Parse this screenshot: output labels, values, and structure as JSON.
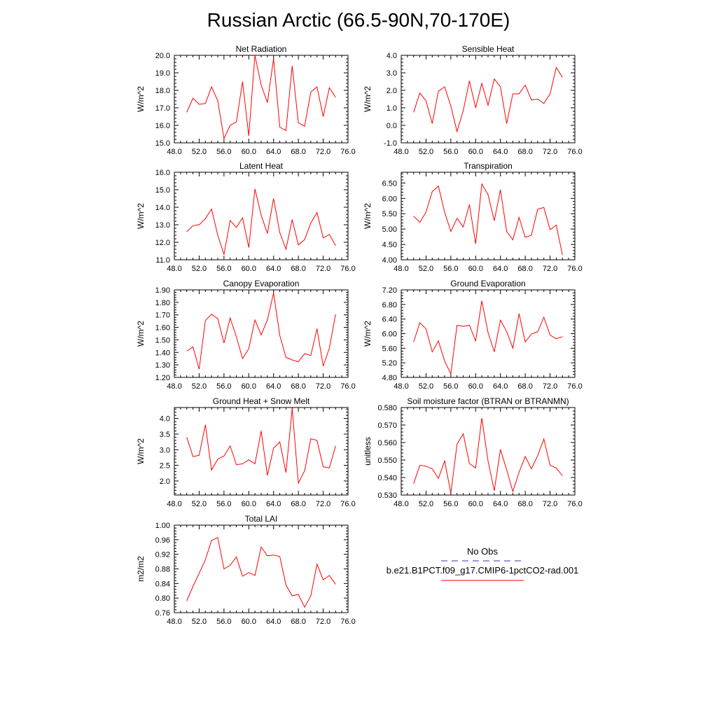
{
  "title": "Russian Arctic (66.5-90N,70-170E)",
  "legend": {
    "items": [
      {
        "label": "No Obs",
        "color": "#3333aa",
        "dash": true
      },
      {
        "label": "b.e21.B1PCT.f09_g17.CMIP6-1pctCO2-rad.001",
        "color": "#ff0000",
        "dash": false
      }
    ]
  },
  "chart_data": [
    {
      "type": "line",
      "title": "Net Radiation",
      "ylabel": "W/m^2",
      "xlim": [
        48,
        76
      ],
      "ylim": [
        15,
        20
      ],
      "xticks": [
        "48.0",
        "52.0",
        "56.0",
        "60.0",
        "64.0",
        "68.0",
        "72.0",
        "76.0"
      ],
      "yticks": [
        "15.0",
        "16.0",
        "17.0",
        "18.0",
        "19.0",
        "20.0"
      ],
      "yticks_values": [
        15,
        16,
        17,
        18,
        19,
        20
      ],
      "series": [
        {
          "color": "#ff0000",
          "x": [
            50,
            51,
            52,
            53,
            54,
            55,
            56,
            57,
            58,
            59,
            60,
            61,
            62,
            63,
            64,
            65,
            66,
            67,
            68,
            69,
            70,
            71,
            72,
            73,
            74
          ],
          "y": [
            16.75,
            17.55,
            17.2,
            17.25,
            18.2,
            17.4,
            15.25,
            16.0,
            16.2,
            18.5,
            15.4,
            20.0,
            18.3,
            17.3,
            19.8,
            15.9,
            15.7,
            19.4,
            16.15,
            15.95,
            17.9,
            18.2,
            16.5,
            18.15,
            17.6
          ]
        }
      ]
    },
    {
      "type": "line",
      "title": "Sensible Heat",
      "ylabel": "W/m^2",
      "xlim": [
        48,
        76
      ],
      "ylim": [
        -1,
        4
      ],
      "xticks": [
        "48.0",
        "52.0",
        "56.0",
        "60.0",
        "64.0",
        "68.0",
        "72.0",
        "76.0"
      ],
      "yticks": [
        "-1.0",
        "0.0",
        "1.0",
        "2.0",
        "3.0",
        "4.0"
      ],
      "yticks_values": [
        -1,
        0,
        1,
        2,
        3,
        4
      ],
      "series": [
        {
          "color": "#ff0000",
          "x": [
            50,
            51,
            52,
            53,
            54,
            55,
            56,
            57,
            58,
            59,
            60,
            61,
            62,
            63,
            64,
            65,
            66,
            67,
            68,
            69,
            70,
            71,
            72,
            73,
            74
          ],
          "y": [
            0.75,
            1.85,
            1.4,
            0.1,
            1.95,
            2.2,
            1.1,
            -0.35,
            0.85,
            2.55,
            1.0,
            2.4,
            1.15,
            2.65,
            2.2,
            0.1,
            1.8,
            1.8,
            2.3,
            1.45,
            1.5,
            1.25,
            1.8,
            3.3,
            2.75
          ]
        }
      ]
    },
    {
      "type": "line",
      "title": "Latent Heat",
      "ylabel": "W/m^2",
      "xlim": [
        48,
        76
      ],
      "ylim": [
        11,
        16
      ],
      "xticks": [
        "48.0",
        "52.0",
        "56.0",
        "60.0",
        "64.0",
        "68.0",
        "72.0",
        "76.0"
      ],
      "yticks": [
        "11.0",
        "12.0",
        "13.0",
        "14.0",
        "15.0",
        "16.0"
      ],
      "yticks_values": [
        11,
        12,
        13,
        14,
        15,
        16
      ],
      "series": [
        {
          "color": "#ff0000",
          "x": [
            50,
            51,
            52,
            53,
            54,
            55,
            56,
            57,
            58,
            59,
            60,
            61,
            62,
            63,
            64,
            65,
            66,
            67,
            68,
            69,
            70,
            71,
            72,
            73,
            74
          ],
          "y": [
            12.6,
            12.95,
            13.0,
            13.35,
            13.9,
            12.4,
            11.3,
            13.25,
            12.85,
            13.4,
            11.7,
            15.05,
            13.55,
            12.5,
            14.5,
            12.55,
            11.6,
            13.3,
            11.85,
            12.15,
            13.1,
            13.7,
            12.25,
            12.45,
            11.8
          ]
        }
      ]
    },
    {
      "type": "line",
      "title": "Transpiration",
      "ylabel": "W/m^2",
      "xlim": [
        48,
        76
      ],
      "ylim": [
        4,
        6.85
      ],
      "xticks": [
        "48.0",
        "52.0",
        "56.0",
        "60.0",
        "64.0",
        "68.0",
        "72.0",
        "76.0"
      ],
      "yticks": [
        "4.00",
        "4.50",
        "5.00",
        "5.50",
        "6.00",
        "6.50"
      ],
      "yticks_values": [
        4,
        4.5,
        5,
        5.5,
        6,
        6.5
      ],
      "series": [
        {
          "color": "#ff0000",
          "x": [
            50,
            51,
            52,
            53,
            54,
            55,
            56,
            57,
            58,
            59,
            60,
            61,
            62,
            63,
            64,
            65,
            66,
            67,
            68,
            69,
            70,
            71,
            72,
            73,
            74
          ],
          "y": [
            5.42,
            5.22,
            5.55,
            6.22,
            6.4,
            5.55,
            4.92,
            5.35,
            5.07,
            5.8,
            4.52,
            6.47,
            6.12,
            5.27,
            6.28,
            4.92,
            4.65,
            5.38,
            4.73,
            4.8,
            5.65,
            5.7,
            4.98,
            5.13,
            4.15
          ]
        }
      ]
    },
    {
      "type": "line",
      "title": "Canopy Evaporation",
      "ylabel": "W/m^2",
      "xlim": [
        48,
        76
      ],
      "ylim": [
        1.2,
        1.9
      ],
      "xticks": [
        "48.0",
        "52.0",
        "56.0",
        "60.0",
        "64.0",
        "68.0",
        "72.0",
        "76.0"
      ],
      "yticks": [
        "1.20",
        "1.30",
        "1.40",
        "1.50",
        "1.60",
        "1.70",
        "1.80",
        "1.90"
      ],
      "yticks_values": [
        1.2,
        1.3,
        1.4,
        1.5,
        1.6,
        1.7,
        1.8,
        1.9
      ],
      "series": [
        {
          "color": "#ff0000",
          "x": [
            50,
            51,
            52,
            53,
            54,
            55,
            56,
            57,
            58,
            59,
            60,
            61,
            62,
            63,
            64,
            65,
            66,
            67,
            68,
            69,
            70,
            71,
            72,
            73,
            74
          ],
          "y": [
            1.41,
            1.445,
            1.265,
            1.655,
            1.705,
            1.67,
            1.475,
            1.675,
            1.525,
            1.35,
            1.43,
            1.66,
            1.54,
            1.66,
            1.875,
            1.535,
            1.36,
            1.34,
            1.325,
            1.39,
            1.375,
            1.59,
            1.29,
            1.435,
            1.705
          ]
        }
      ]
    },
    {
      "type": "line",
      "title": "Ground Evaporation",
      "ylabel": "W/m^2",
      "xlim": [
        48,
        76
      ],
      "ylim": [
        4.8,
        7.2
      ],
      "xticks": [
        "48.0",
        "52.0",
        "56.0",
        "60.0",
        "64.0",
        "68.0",
        "72.0",
        "76.0"
      ],
      "yticks": [
        "4.80",
        "5.20",
        "5.60",
        "6.00",
        "6.40",
        "6.80",
        "7.20"
      ],
      "yticks_values": [
        4.8,
        5.2,
        5.6,
        6.0,
        6.4,
        6.8,
        7.2
      ],
      "series": [
        {
          "color": "#ff0000",
          "x": [
            50,
            51,
            52,
            53,
            54,
            55,
            56,
            57,
            58,
            59,
            60,
            61,
            62,
            63,
            64,
            65,
            66,
            67,
            68,
            69,
            70,
            71,
            72,
            73,
            74
          ],
          "y": [
            5.77,
            6.3,
            6.13,
            5.5,
            5.8,
            5.25,
            4.9,
            6.23,
            6.2,
            6.23,
            5.8,
            6.9,
            6.03,
            5.5,
            6.37,
            6.06,
            5.6,
            6.55,
            5.77,
            5.99,
            6.05,
            6.45,
            5.96,
            5.86,
            5.92
          ]
        }
      ]
    },
    {
      "type": "line",
      "title": "Ground Heat + Snow Melt",
      "ylabel": "W/m^2",
      "xlim": [
        48,
        76
      ],
      "ylim": [
        1.55,
        4.35
      ],
      "xticks": [
        "48.0",
        "52.0",
        "56.0",
        "60.0",
        "64.0",
        "68.0",
        "72.0",
        "76.0"
      ],
      "yticks": [
        "2.0",
        "2.5",
        "3.0",
        "3.5",
        "4.0"
      ],
      "yticks_values": [
        2.0,
        2.5,
        3.0,
        3.5,
        4.0
      ],
      "series": [
        {
          "color": "#ff0000",
          "x": [
            50,
            51,
            52,
            53,
            54,
            55,
            56,
            57,
            58,
            59,
            60,
            61,
            62,
            63,
            64,
            65,
            66,
            67,
            68,
            69,
            70,
            71,
            72,
            73,
            74
          ],
          "y": [
            3.4,
            2.78,
            2.82,
            3.8,
            2.35,
            2.7,
            2.8,
            3.12,
            2.52,
            2.55,
            2.68,
            2.55,
            3.6,
            2.18,
            3.05,
            3.25,
            2.27,
            4.32,
            1.93,
            2.32,
            3.35,
            3.3,
            2.45,
            2.42,
            3.12
          ]
        }
      ]
    },
    {
      "type": "line",
      "title": "Soil moisture factor (BTRAN or BTRANMN)",
      "ylabel": "unitless",
      "xlim": [
        48,
        76
      ],
      "ylim": [
        0.53,
        0.58
      ],
      "xticks": [
        "48.0",
        "52.0",
        "56.0",
        "60.0",
        "64.0",
        "68.0",
        "72.0",
        "76.0"
      ],
      "yticks": [
        "0.530",
        "0.540",
        "0.550",
        "0.560",
        "0.570",
        "0.580"
      ],
      "yticks_values": [
        0.53,
        0.54,
        0.55,
        0.56,
        0.57,
        0.58
      ],
      "series": [
        {
          "color": "#ff0000",
          "x": [
            50,
            51,
            52,
            53,
            54,
            55,
            56,
            57,
            58,
            59,
            60,
            61,
            62,
            63,
            64,
            65,
            66,
            67,
            68,
            69,
            70,
            71,
            72,
            73,
            74
          ],
          "y": [
            0.5365,
            0.547,
            0.5465,
            0.545,
            0.5395,
            0.5495,
            0.531,
            0.559,
            0.565,
            0.548,
            0.5455,
            0.574,
            0.5495,
            0.5325,
            0.556,
            0.5445,
            0.532,
            0.543,
            0.552,
            0.545,
            0.5525,
            0.562,
            0.547,
            0.5455,
            0.541
          ]
        }
      ]
    },
    {
      "type": "line",
      "title": "Total LAI",
      "ylabel": "m2/m2",
      "xlim": [
        48,
        76
      ],
      "ylim": [
        0.76,
        1.0
      ],
      "xticks": [
        "48.0",
        "52.0",
        "56.0",
        "60.0",
        "64.0",
        "68.0",
        "72.0",
        "76.0"
      ],
      "yticks": [
        "0.76",
        "0.80",
        "0.84",
        "0.88",
        "0.92",
        "0.96",
        "1.00"
      ],
      "yticks_values": [
        0.76,
        0.8,
        0.84,
        0.88,
        0.92,
        0.96,
        1.0
      ],
      "series": [
        {
          "color": "#ff0000",
          "x": [
            50,
            51,
            52,
            53,
            54,
            55,
            56,
            57,
            58,
            59,
            60,
            61,
            62,
            63,
            64,
            65,
            66,
            67,
            68,
            69,
            70,
            71,
            72,
            73,
            74
          ],
          "y": [
            0.792,
            0.832,
            0.868,
            0.905,
            0.958,
            0.966,
            0.88,
            0.89,
            0.913,
            0.86,
            0.87,
            0.862,
            0.94,
            0.916,
            0.918,
            0.914,
            0.836,
            0.806,
            0.81,
            0.775,
            0.806,
            0.893,
            0.85,
            0.862,
            0.838
          ]
        }
      ]
    }
  ]
}
